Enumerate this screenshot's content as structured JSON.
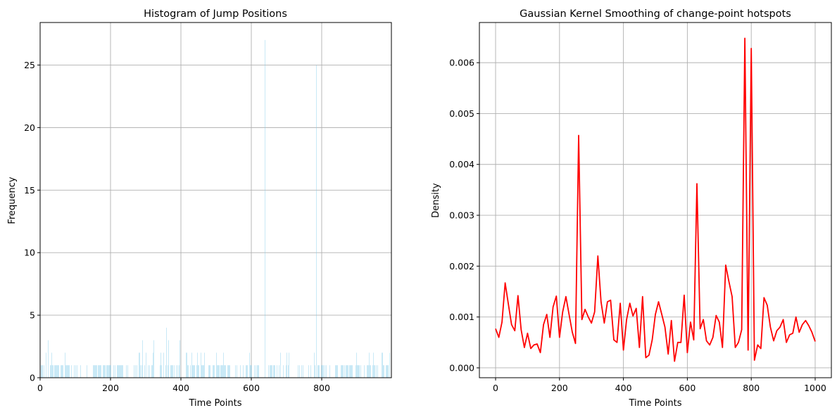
{
  "chart_data": [
    {
      "type": "bar",
      "title": "Histogram of Jump Positions",
      "xlabel": "Time Points",
      "ylabel": "Frequency",
      "xlim": [
        0,
        998
      ],
      "ylim": [
        0,
        28.4
      ],
      "xticks": [
        0,
        200,
        400,
        600,
        800
      ],
      "yticks": [
        0,
        5,
        10,
        15,
        20,
        25
      ],
      "grid": true,
      "bin_width": 1,
      "color": "#87ceeb",
      "bins": [
        [
          2,
          1
        ],
        [
          4,
          1
        ],
        [
          6,
          1
        ],
        [
          10,
          1
        ],
        [
          16,
          2
        ],
        [
          22,
          3
        ],
        [
          28,
          1
        ],
        [
          30,
          1
        ],
        [
          32,
          2
        ],
        [
          34,
          1
        ],
        [
          36,
          1
        ],
        [
          40,
          1
        ],
        [
          42,
          1
        ],
        [
          44,
          1
        ],
        [
          46,
          1
        ],
        [
          48,
          1
        ],
        [
          50,
          1
        ],
        [
          52,
          1
        ],
        [
          58,
          1
        ],
        [
          60,
          1
        ],
        [
          62,
          1
        ],
        [
          64,
          1
        ],
        [
          70,
          2
        ],
        [
          72,
          1
        ],
        [
          74,
          1
        ],
        [
          76,
          1
        ],
        [
          78,
          1
        ],
        [
          80,
          1
        ],
        [
          82,
          1
        ],
        [
          88,
          1
        ],
        [
          96,
          1
        ],
        [
          100,
          1
        ],
        [
          104,
          1
        ],
        [
          114,
          1
        ],
        [
          132,
          1
        ],
        [
          150,
          1
        ],
        [
          152,
          1
        ],
        [
          154,
          1
        ],
        [
          156,
          1
        ],
        [
          158,
          1
        ],
        [
          160,
          1
        ],
        [
          164,
          1
        ],
        [
          166,
          1
        ],
        [
          168,
          1
        ],
        [
          170,
          1
        ],
        [
          172,
          1
        ],
        [
          178,
          1
        ],
        [
          180,
          1
        ],
        [
          182,
          1
        ],
        [
          184,
          1
        ],
        [
          188,
          1
        ],
        [
          190,
          1
        ],
        [
          192,
          1
        ],
        [
          194,
          1
        ],
        [
          196,
          1
        ],
        [
          198,
          1
        ],
        [
          200,
          1
        ],
        [
          208,
          1
        ],
        [
          212,
          1
        ],
        [
          218,
          1
        ],
        [
          220,
          1
        ],
        [
          222,
          1
        ],
        [
          224,
          1
        ],
        [
          226,
          1
        ],
        [
          228,
          1
        ],
        [
          230,
          1
        ],
        [
          232,
          1
        ],
        [
          234,
          1
        ],
        [
          244,
          1
        ],
        [
          248,
          1
        ],
        [
          266,
          1
        ],
        [
          270,
          1
        ],
        [
          274,
          1
        ],
        [
          280,
          2
        ],
        [
          282,
          2
        ],
        [
          284,
          1
        ],
        [
          288,
          1
        ],
        [
          290,
          3
        ],
        [
          296,
          1
        ],
        [
          300,
          2
        ],
        [
          306,
          1
        ],
        [
          310,
          1
        ],
        [
          316,
          1
        ],
        [
          318,
          1
        ],
        [
          320,
          2
        ],
        [
          322,
          3
        ],
        [
          340,
          1
        ],
        [
          342,
          2
        ],
        [
          344,
          1
        ],
        [
          350,
          2
        ],
        [
          356,
          1
        ],
        [
          358,
          4
        ],
        [
          362,
          1
        ],
        [
          364,
          3
        ],
        [
          370,
          1
        ],
        [
          372,
          1
        ],
        [
          374,
          1
        ],
        [
          376,
          1
        ],
        [
          380,
          1
        ],
        [
          386,
          1
        ],
        [
          390,
          1
        ],
        [
          394,
          1
        ],
        [
          396,
          3
        ],
        [
          414,
          2
        ],
        [
          416,
          2
        ],
        [
          418,
          1
        ],
        [
          420,
          1
        ],
        [
          426,
          1
        ],
        [
          430,
          2
        ],
        [
          432,
          1
        ],
        [
          434,
          1
        ],
        [
          436,
          1
        ],
        [
          438,
          1
        ],
        [
          444,
          1
        ],
        [
          446,
          2
        ],
        [
          448,
          1
        ],
        [
          450,
          1
        ],
        [
          456,
          2
        ],
        [
          458,
          1
        ],
        [
          460,
          1
        ],
        [
          462,
          1
        ],
        [
          464,
          1
        ],
        [
          466,
          2
        ],
        [
          478,
          1
        ],
        [
          480,
          1
        ],
        [
          482,
          1
        ],
        [
          490,
          1
        ],
        [
          492,
          1
        ],
        [
          494,
          1
        ],
        [
          500,
          2
        ],
        [
          502,
          1
        ],
        [
          504,
          1
        ],
        [
          506,
          1
        ],
        [
          508,
          1
        ],
        [
          512,
          1
        ],
        [
          514,
          1
        ],
        [
          516,
          1
        ],
        [
          518,
          1
        ],
        [
          520,
          2
        ],
        [
          522,
          1
        ],
        [
          524,
          1
        ],
        [
          526,
          1
        ],
        [
          532,
          1
        ],
        [
          534,
          1
        ],
        [
          536,
          1
        ],
        [
          538,
          1
        ],
        [
          554,
          1
        ],
        [
          558,
          1
        ],
        [
          568,
          1
        ],
        [
          576,
          1
        ],
        [
          584,
          1
        ],
        [
          586,
          1
        ],
        [
          588,
          1
        ],
        [
          594,
          2
        ],
        [
          596,
          1
        ],
        [
          598,
          1
        ],
        [
          600,
          1
        ],
        [
          608,
          1
        ],
        [
          612,
          1
        ],
        [
          616,
          1
        ],
        [
          618,
          1
        ],
        [
          620,
          1
        ],
        [
          638,
          27
        ],
        [
          648,
          1
        ],
        [
          652,
          1
        ],
        [
          654,
          1
        ],
        [
          656,
          1
        ],
        [
          658,
          1
        ],
        [
          662,
          1
        ],
        [
          664,
          1
        ],
        [
          666,
          1
        ],
        [
          672,
          1
        ],
        [
          678,
          1
        ],
        [
          682,
          2
        ],
        [
          690,
          1
        ],
        [
          698,
          1
        ],
        [
          700,
          2
        ],
        [
          704,
          1
        ],
        [
          706,
          2
        ],
        [
          732,
          1
        ],
        [
          736,
          1
        ],
        [
          742,
          1
        ],
        [
          746,
          1
        ],
        [
          762,
          1
        ],
        [
          768,
          1
        ],
        [
          778,
          2
        ],
        [
          780,
          1
        ],
        [
          784,
          25
        ],
        [
          788,
          1
        ],
        [
          790,
          1
        ],
        [
          792,
          1
        ],
        [
          798,
          1
        ],
        [
          800,
          1
        ],
        [
          802,
          1
        ],
        [
          804,
          1
        ],
        [
          808,
          1
        ],
        [
          812,
          1
        ],
        [
          822,
          1
        ],
        [
          838,
          1
        ],
        [
          840,
          1
        ],
        [
          842,
          1
        ],
        [
          844,
          1
        ],
        [
          854,
          1
        ],
        [
          856,
          1
        ],
        [
          858,
          1
        ],
        [
          860,
          1
        ],
        [
          864,
          1
        ],
        [
          868,
          1
        ],
        [
          870,
          1
        ],
        [
          872,
          1
        ],
        [
          874,
          1
        ],
        [
          878,
          1
        ],
        [
          880,
          1
        ],
        [
          882,
          1
        ],
        [
          884,
          1
        ],
        [
          886,
          1
        ],
        [
          896,
          1
        ],
        [
          898,
          2
        ],
        [
          900,
          1
        ],
        [
          902,
          1
        ],
        [
          904,
          1
        ],
        [
          906,
          1
        ],
        [
          910,
          1
        ],
        [
          920,
          1
        ],
        [
          928,
          1
        ],
        [
          930,
          1
        ],
        [
          932,
          1
        ],
        [
          934,
          2
        ],
        [
          936,
          1
        ],
        [
          938,
          1
        ],
        [
          944,
          1
        ],
        [
          946,
          2
        ],
        [
          948,
          1
        ],
        [
          950,
          1
        ],
        [
          954,
          1
        ],
        [
          958,
          1
        ],
        [
          970,
          2
        ],
        [
          972,
          2
        ],
        [
          974,
          1
        ],
        [
          976,
          1
        ],
        [
          982,
          1
        ],
        [
          984,
          1
        ],
        [
          986,
          1
        ],
        [
          988,
          1
        ],
        [
          992,
          2
        ]
      ]
    },
    {
      "type": "line",
      "title": "Gaussian Kernel Smoothing of change-point hotspots",
      "xlabel": "Time Points",
      "ylabel": "Density",
      "xlim": [
        -50.7,
        1050.7
      ],
      "ylim": [
        -0.000194,
        0.00679
      ],
      "xticks": [
        0,
        200,
        400,
        600,
        800,
        1000
      ],
      "yticks": [
        "0.000",
        "0.001",
        "0.002",
        "0.003",
        "0.004",
        "0.005",
        "0.006"
      ],
      "grid": true,
      "color": "#ff0000",
      "x_start": 0,
      "x_step": 10,
      "y": [
        0.00077,
        0.0006,
        0.0009,
        0.00167,
        0.00125,
        0.00085,
        0.00073,
        0.00142,
        0.00075,
        0.0004,
        0.00068,
        0.00038,
        0.00045,
        0.00047,
        0.0003,
        0.00085,
        0.00105,
        0.0006,
        0.0012,
        0.00141,
        0.0006,
        0.0011,
        0.0014,
        0.00105,
        0.0007,
        0.00048,
        0.00457,
        0.00095,
        0.00115,
        0.001,
        0.00088,
        0.0011,
        0.0022,
        0.0013,
        0.00088,
        0.0013,
        0.00133,
        0.00055,
        0.0005,
        0.00127,
        0.00035,
        0.00095,
        0.00127,
        0.00102,
        0.00117,
        0.0004,
        0.0014,
        0.0002,
        0.00025,
        0.00055,
        0.00105,
        0.0013,
        0.00105,
        0.0008,
        0.00027,
        0.00093,
        0.00013,
        0.0005,
        0.0005,
        0.00143,
        0.0003,
        0.0009,
        0.00055,
        0.00362,
        0.00077,
        0.00095,
        0.00053,
        0.00045,
        0.0006,
        0.00103,
        0.0009,
        0.0004,
        0.00202,
        0.0017,
        0.0014,
        0.0004,
        0.0005,
        0.00075,
        0.00648,
        0.00035,
        0.00628,
        0.00015,
        0.00045,
        0.00038,
        0.00138,
        0.00123,
        0.0008,
        0.00053,
        0.00073,
        0.0008,
        0.00095,
        0.0005,
        0.00065,
        0.00068,
        0.001,
        0.0007,
        0.00085,
        0.00093,
        0.00083,
        0.0007,
        0.00052
      ]
    }
  ]
}
